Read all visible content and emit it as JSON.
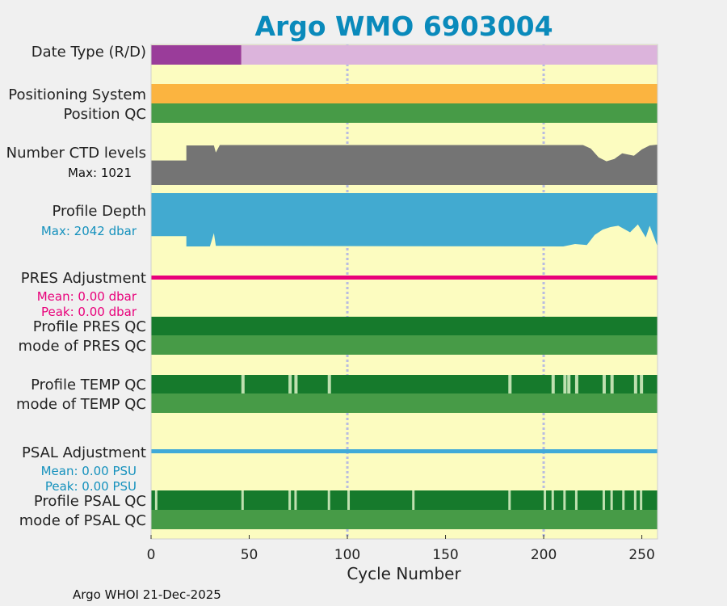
{
  "chart_data": {
    "type": "bar",
    "title": "Argo WMO 6903004",
    "xlabel": "Cycle Number",
    "xlim": [
      0,
      258
    ],
    "xticks": [
      "0",
      "50",
      "100",
      "150",
      "200",
      "250"
    ],
    "footer": "Argo WHOI 21-Dec-2025",
    "rows": {
      "date_type": "Date Type (R/D)",
      "positioning_system": "Positioning System",
      "position_qc": "Position QC",
      "ctd_levels": "Number CTD levels",
      "ctd_max": "Max: 1021",
      "profile_depth": "Profile Depth",
      "depth_max": "Max: 2042 dbar",
      "pres_adjustment": "PRES Adjustment",
      "pres_mean": "Mean: 0.00 dbar",
      "pres_peak": "Peak: 0.00 dbar",
      "profile_pres_qc": "Profile PRES QC",
      "mode_pres_qc": "mode of PRES QC",
      "profile_temp_qc": "Profile TEMP QC",
      "mode_temp_qc": "mode of TEMP QC",
      "psal_adjustment": "PSAL Adjustment",
      "psal_mean": "Mean: 0.00 PSU",
      "psal_peak": "Peak: 0.00 PSU",
      "profile_psal_qc": "Profile PSAL QC",
      "mode_psal_qc": "mode of PSAL QC"
    },
    "date_type_delayed_until_cycle": 46,
    "ctd_levels_series": [
      [
        0,
        620
      ],
      [
        18,
        620
      ],
      [
        18,
        1000
      ],
      [
        32,
        1000
      ],
      [
        33,
        820
      ],
      [
        35,
        1010
      ],
      [
        220,
        1010
      ],
      [
        224,
        920
      ],
      [
        228,
        700
      ],
      [
        232,
        600
      ],
      [
        236,
        660
      ],
      [
        240,
        800
      ],
      [
        246,
        740
      ],
      [
        250,
        900
      ],
      [
        254,
        1000
      ],
      [
        258,
        1021
      ]
    ],
    "profile_depth_series": [
      [
        0,
        1650
      ],
      [
        18,
        1650
      ],
      [
        18,
        2042
      ],
      [
        30,
        2042
      ],
      [
        32,
        1530
      ],
      [
        33,
        2020
      ],
      [
        210,
        2042
      ],
      [
        216,
        1950
      ],
      [
        222,
        1990
      ],
      [
        226,
        1600
      ],
      [
        230,
        1400
      ],
      [
        234,
        1300
      ],
      [
        238,
        1250
      ],
      [
        244,
        1500
      ],
      [
        248,
        1200
      ],
      [
        252,
        1700
      ],
      [
        254,
        1250
      ],
      [
        258,
        2042
      ]
    ],
    "temp_qc_gaps": [
      46,
      70,
      73,
      90,
      182,
      204,
      210,
      212,
      216,
      230,
      234,
      246,
      249
    ],
    "psal_qc_gaps": [
      2,
      46,
      70,
      73,
      90,
      100,
      133,
      182,
      200,
      204,
      210,
      216,
      230,
      234,
      240,
      246,
      249
    ],
    "colors": {
      "title": "#0a8abb",
      "background": "#fcfcc0",
      "date_delayed": "#9a3c9a",
      "date_realtime": "#dcb4dc",
      "positioning": "#fbb440",
      "qc_good": "#479b47",
      "qc_profile_a": "#167a2c",
      "qc_gap": "#bfe0b0",
      "ctd": "#747474",
      "depth": "#42aad0",
      "pres_adj": "#e8007a",
      "psal_adj": "#40aad8",
      "grid": "#b8bce0"
    }
  }
}
